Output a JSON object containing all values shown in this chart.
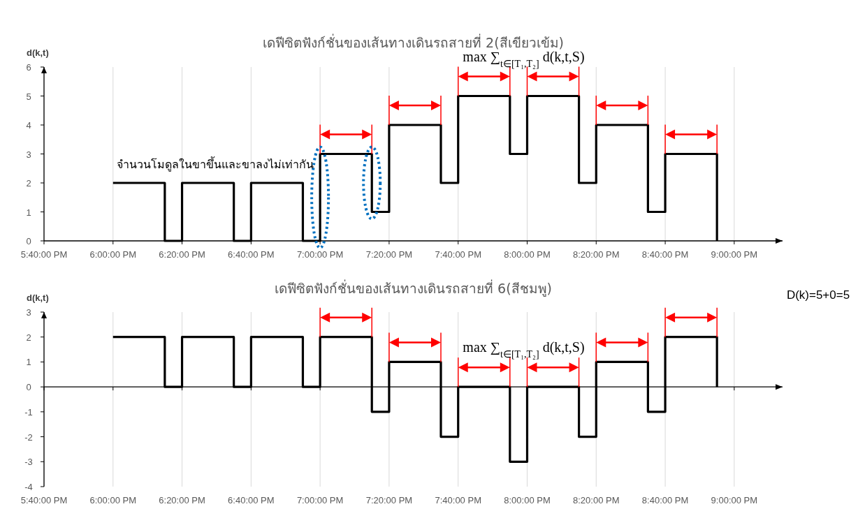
{
  "chart_data": [
    {
      "type": "step",
      "title": "เดฟีซิตฟังก์ชั่นของเส้นทางเดินรถสายที่ 2(สีเขียวเข้ม)",
      "ylabel": "d(k,t)",
      "x": [
        18,
        18.25,
        18.3333,
        18.5833,
        18.6667,
        18.9167,
        19,
        19.25,
        19.3333,
        19.5833,
        19.6667,
        19.9167,
        20,
        20.25,
        20.3333,
        20.5833,
        20.6667,
        20.9167
      ],
      "series": [
        {
          "color": "#000000",
          "values": [
            2,
            0,
            2,
            0,
            2,
            0,
            3,
            1,
            4,
            2,
            5,
            3,
            5,
            2,
            4,
            1,
            3,
            0
          ]
        }
      ],
      "xlim": [
        17.6667,
        21.2333
      ],
      "xticks": [
        {
          "value": 17.6667,
          "label": "5:40:00 PM"
        },
        {
          "value": 18,
          "label": "6:00:00 PM"
        },
        {
          "value": 18.3333,
          "label": "6:20:00 PM"
        },
        {
          "value": 18.6667,
          "label": "6:40:00 PM"
        },
        {
          "value": 19,
          "label": "7:00:00 PM"
        },
        {
          "value": 19.3333,
          "label": "7:20:00 PM"
        },
        {
          "value": 19.6667,
          "label": "7:40:00 PM"
        },
        {
          "value": 20,
          "label": "8:00:00 PM"
        },
        {
          "value": 20.3333,
          "label": "8:20:00 PM"
        },
        {
          "value": 20.6667,
          "label": "8:40:00 PM"
        },
        {
          "value": 21,
          "label": "9:00:00 PM"
        }
      ],
      "ylim": [
        0,
        6
      ],
      "yticks": [
        0,
        1,
        2,
        3,
        4,
        5,
        6
      ],
      "grid": "x",
      "marker": "none",
      "line_style": "solid",
      "annotations": [
        "จำนวนโมดูลในขาขึ้นและขาลงไม่เท่ากัน",
        {
          "text": "max ∑$_{t∈[T₁,T₂]}$ d(k,t,S)",
          "x": 20,
          "y": 5
        }
      ]
    },
    {
      "type": "step",
      "title": "เดฟีซิตฟังก์ชั่นของเส้นทางเดินรถสายที่ 6(สีชมพู)",
      "ylabel": "d(k,t)",
      "x": [
        18,
        18.25,
        18.3333,
        18.5833,
        18.6667,
        18.9167,
        19,
        19.25,
        19.3333,
        19.5833,
        19.6667,
        19.9167,
        20,
        20.25,
        20.3333,
        20.5833,
        20.6667,
        20.9167
      ],
      "series": [
        {
          "color": "#000000",
          "values": [
            2,
            0,
            2,
            0,
            2,
            0,
            2,
            -1,
            1,
            -2,
            0,
            -3,
            0,
            -2,
            1,
            -1,
            2,
            0
          ]
        }
      ],
      "xlim": [
        17.6667,
        21.2333
      ],
      "xticks": [
        {
          "value": 17.6667,
          "label": "5:40:00 PM"
        },
        {
          "value": 18,
          "label": "6:00:00 PM"
        },
        {
          "value": 18.3333,
          "label": "6:20:00 PM"
        },
        {
          "value": 18.6667,
          "label": "6:40:00 PM"
        },
        {
          "value": 19,
          "label": "7:00:00 PM"
        },
        {
          "value": 19.3333,
          "label": "7:20:00 PM"
        },
        {
          "value": 19.6667,
          "label": "7:40:00 PM"
        },
        {
          "value": 20,
          "label": "8:00:00 PM"
        },
        {
          "value": 20.3333,
          "label": "8:20:00 PM"
        },
        {
          "value": 20.6667,
          "label": "8:40:00 PM"
        },
        {
          "value": 21,
          "label": "9:00:00 PM"
        }
      ],
      "ylim": [
        -4,
        3
      ],
      "yticks": [
        -4,
        -3,
        -2,
        -1,
        0,
        1,
        2,
        3
      ],
      "grid": "x",
      "marker": "none",
      "line_style": "solid",
      "annotations": [
        {
          "text": "max ∑$_{t∈[T₁,T₂]}$ d(k,t,S)",
          "x": 20,
          "y": 0
        },
        "D(k)=5+0=5"
      ]
    }
  ]
}
